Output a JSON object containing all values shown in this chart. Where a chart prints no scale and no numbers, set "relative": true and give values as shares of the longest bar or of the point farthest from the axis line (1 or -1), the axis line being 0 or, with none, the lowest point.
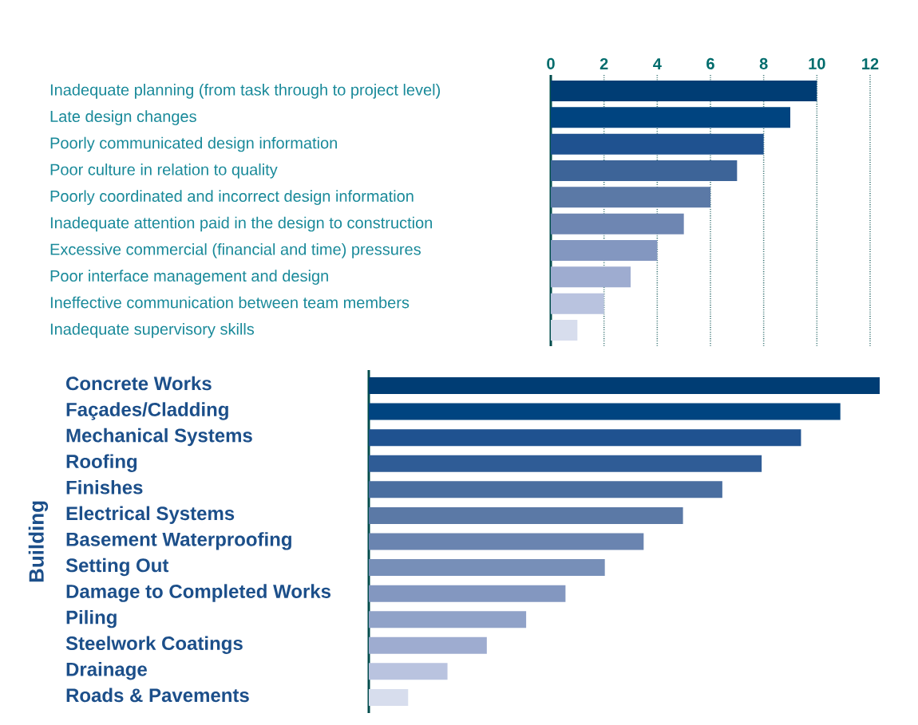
{
  "chart_data": [
    {
      "type": "bar",
      "orientation": "horizontal",
      "categories": [
        "Inadequate planning (from task through to project level)",
        "Late design changes",
        "Poorly communicated design information",
        "Poor culture in relation to quality",
        "Poorly coordinated and incorrect design information",
        "Inadequate attention paid in the design to construction",
        "Excessive commercial (financial and time) pressures",
        "Poor interface management and design",
        "Ineffective communication between team members",
        "Inadequate supervisory skills"
      ],
      "values": [
        10,
        9,
        8,
        7,
        6,
        5,
        4,
        3,
        2,
        1
      ],
      "colors": [
        "#003d74",
        "#004480",
        "#1f5290",
        "#3d6498",
        "#5b79a6",
        "#6e86b2",
        "#8397c0",
        "#9eacd0",
        "#b9c3df",
        "#d7dded"
      ],
      "xlim": [
        0,
        12
      ],
      "xticks": [
        0,
        2,
        4,
        6,
        8,
        10,
        12
      ],
      "grid": "x"
    },
    {
      "type": "bar",
      "orientation": "horizontal",
      "relative": true,
      "ylabel": "Building",
      "categories": [
        "Concrete Works",
        "Façades/Cladding",
        "Mechanical Systems",
        "Roofing",
        "Finishes",
        "Electrical Systems",
        "Basement Waterproofing",
        "Setting Out",
        "Damage to Completed Works",
        "Piling",
        "Steelwork Coatings",
        "Drainage",
        "Roads & Pavements"
      ],
      "values": [
        1,
        0.923,
        0.846,
        0.769,
        0.692,
        0.615,
        0.538,
        0.462,
        0.385,
        0.308,
        0.231,
        0.154,
        0.077
      ],
      "colors": [
        "#003d74",
        "#004480",
        "#1f5290",
        "#2f5c96",
        "#4a6ea0",
        "#5b79a6",
        "#6a84b0",
        "#778fb8",
        "#8397c0",
        "#90a2c8",
        "#9eacd0",
        "#b9c3df",
        "#d7dded"
      ]
    }
  ]
}
